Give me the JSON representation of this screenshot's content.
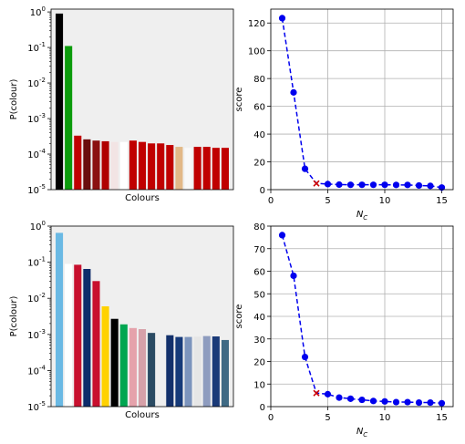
{
  "chart_data": [
    {
      "type": "bar",
      "xlabel": "Colours",
      "ylabel": "P(colour)",
      "yscale": "log",
      "ylim": [
        1e-05,
        1.2
      ],
      "yticks": [
        {
          "value": 1,
          "label": "10^0"
        },
        {
          "value": 0.1,
          "label": "10^-1"
        },
        {
          "value": 0.01,
          "label": "10^-2"
        },
        {
          "value": 0.001,
          "label": "10^-3"
        },
        {
          "value": 0.0001,
          "label": "10^-4"
        },
        {
          "value": 1e-05,
          "label": "10^-5"
        }
      ],
      "facecolor": "#efefef",
      "grid": false,
      "values": [
        0.9,
        0.11,
        0.00033,
        0.00026,
        0.00024,
        0.00023,
        0.00022,
        0.00022,
        0.00024,
        0.00022,
        0.0002,
        0.0002,
        0.00018,
        0.00016,
        0.00015,
        0.00016,
        0.00016,
        0.00015,
        0.00015
      ],
      "colors": [
        "#000000",
        "#0b9b0b",
        "#c00000",
        "#6b0e0e",
        "#8b1010",
        "#b00000",
        "#f2e4e4",
        "#ffffff",
        "#c00000",
        "#c00000",
        "#c00000",
        "#c00000",
        "#c00000",
        "#e2b887",
        "#f8f8f8",
        "#c00000",
        "#c00000",
        "#c00000",
        "#c00000"
      ]
    },
    {
      "type": "line",
      "xlabel": "N_C",
      "ylabel": "score",
      "xlim": [
        0,
        16
      ],
      "ylim": [
        0,
        130
      ],
      "xticks": [
        0,
        5,
        10,
        15
      ],
      "yticks": [
        0,
        20,
        40,
        60,
        80,
        100,
        120
      ],
      "grid": true,
      "line_color": "#0000ee",
      "x": [
        1,
        2,
        3,
        4,
        5,
        6,
        7,
        8,
        9,
        10,
        11,
        12,
        13,
        14,
        15
      ],
      "y": [
        123.5,
        70,
        15,
        4.5,
        4,
        3.6,
        3.5,
        3.5,
        3.5,
        3.5,
        3.4,
        3.4,
        3,
        2.7,
        1.5
      ],
      "selected_index": 3,
      "selected_color": "#cc0000"
    },
    {
      "type": "bar",
      "xlabel": "Colours",
      "ylabel": "P(colour)",
      "yscale": "log",
      "ylim": [
        1e-05,
        1
      ],
      "yticks": [
        {
          "value": 1,
          "label": "10^0"
        },
        {
          "value": 0.1,
          "label": "10^-1"
        },
        {
          "value": 0.01,
          "label": "10^-2"
        },
        {
          "value": 0.001,
          "label": "10^-3"
        },
        {
          "value": 0.0001,
          "label": "10^-4"
        },
        {
          "value": 1e-05,
          "label": "10^-5"
        }
      ],
      "facecolor": "#efefef",
      "grid": false,
      "values": [
        0.65,
        0.09,
        0.085,
        0.065,
        0.03,
        0.006,
        0.0027,
        0.0019,
        0.0015,
        0.0014,
        0.0011,
        0.0009,
        0.00095,
        0.00085,
        0.00085,
        0.00087,
        0.0009,
        0.00088,
        0.0007
      ],
      "colors": [
        "#6ab9e4",
        "#ffffff",
        "#c8102e",
        "#0d2c6b",
        "#c8102e",
        "#ffd200",
        "#000000",
        "#00a651",
        "#e5a2ab",
        "#d7a1a9",
        "#2b4b63",
        "#efefef",
        "#13306b",
        "#163a79",
        "#7c94bd",
        "#e6e6e6",
        "#8e9cbf",
        "#1a3a78",
        "#3f6a84"
      ]
    },
    {
      "type": "line",
      "xlabel": "N_C",
      "ylabel": "score",
      "xlim": [
        0,
        16
      ],
      "ylim": [
        0,
        80
      ],
      "xticks": [
        0,
        5,
        10,
        15
      ],
      "yticks": [
        0,
        10,
        20,
        30,
        40,
        50,
        60,
        70,
        80
      ],
      "grid": true,
      "line_color": "#0000ee",
      "x": [
        1,
        2,
        3,
        4,
        5,
        6,
        7,
        8,
        9,
        10,
        11,
        12,
        13,
        14,
        15
      ],
      "y": [
        76,
        58,
        22,
        6,
        5.5,
        4,
        3.5,
        3,
        2.5,
        2.3,
        2,
        2,
        1.8,
        1.8,
        1.5
      ],
      "selected_index": 3,
      "selected_color": "#cc0000"
    }
  ]
}
